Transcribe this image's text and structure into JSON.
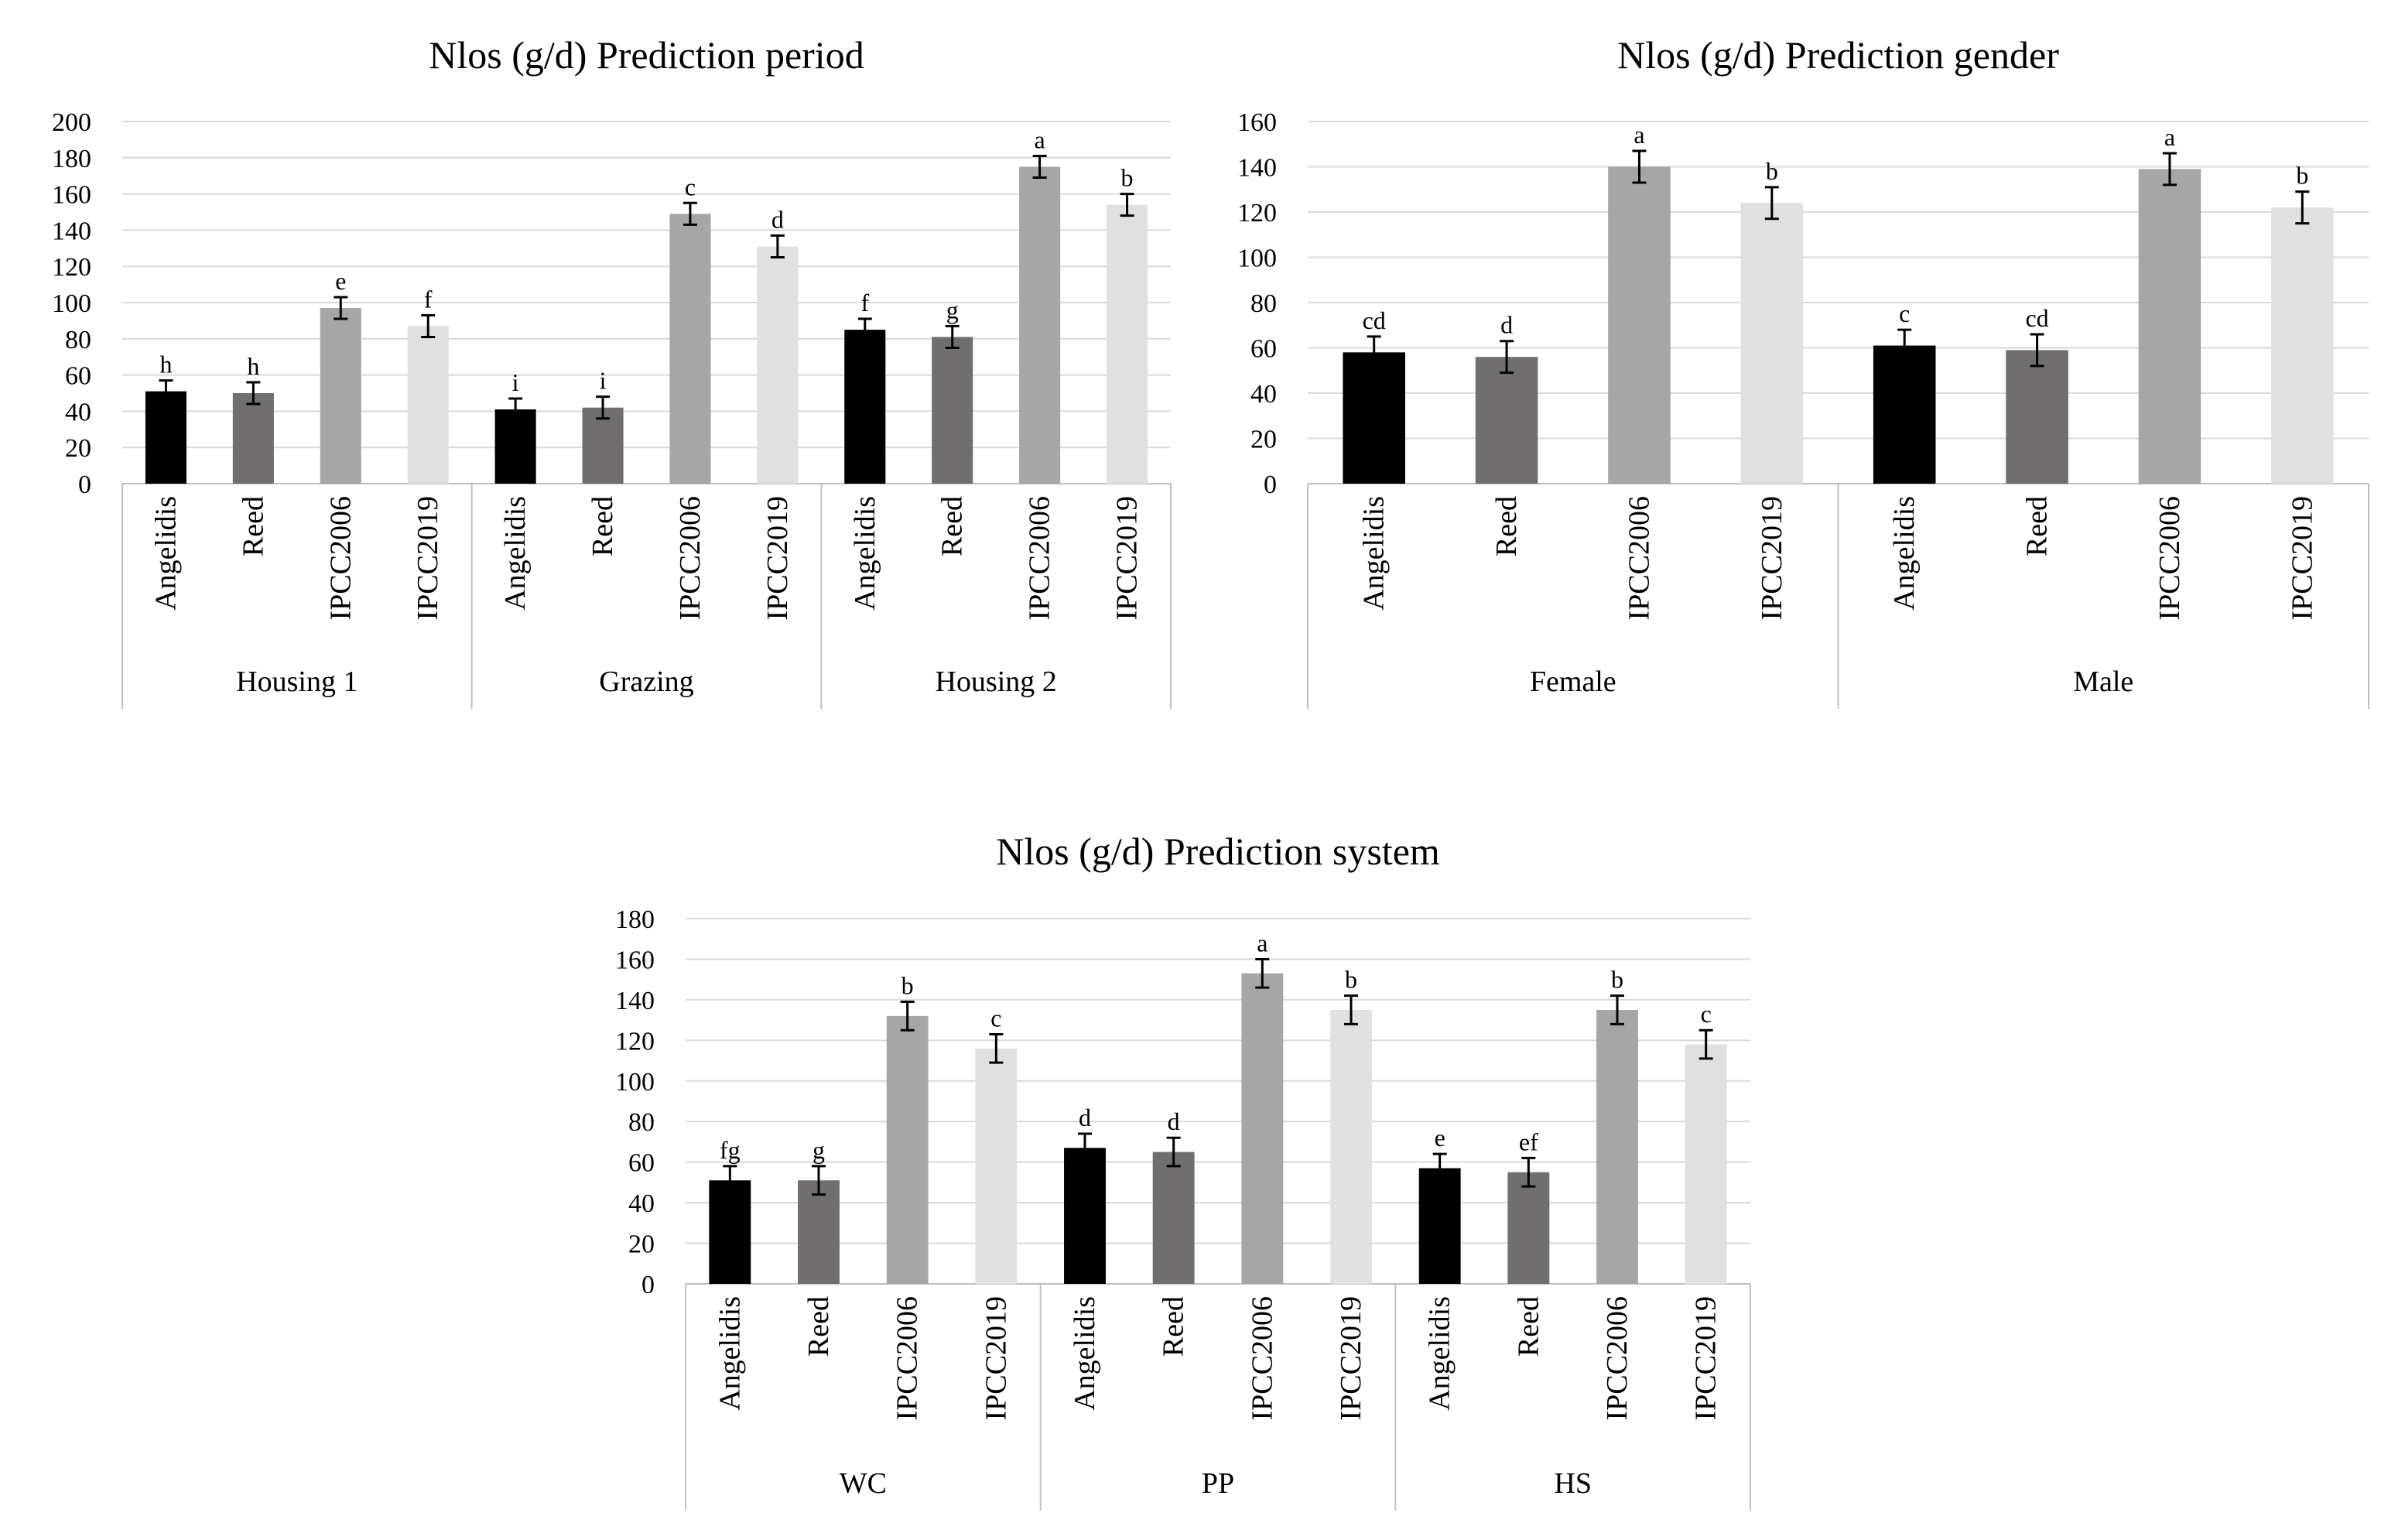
{
  "series_colors": {
    "Angelidis": "#000000",
    "Reed": "#706e6f",
    "IPCC2006": "#a6a6a6",
    "IPCC2019": "#e0e0e0"
  },
  "chart_data": [
    {
      "id": "period",
      "type": "bar",
      "title": "Nlos (g/d) Prediction period",
      "groups": [
        "Housing 1",
        "Grazing",
        "Housing 2"
      ],
      "categories": [
        "Angelidis",
        "Reed",
        "IPCC2006",
        "IPCC2019"
      ],
      "ylim": [
        0,
        200
      ],
      "yticks": [
        0,
        20,
        40,
        60,
        80,
        100,
        120,
        140,
        160,
        180,
        200
      ],
      "values": [
        [
          51,
          50,
          97,
          87
        ],
        [
          41,
          42,
          149,
          131
        ],
        [
          85,
          81,
          175,
          154
        ]
      ],
      "errors": [
        [
          6,
          6,
          6,
          6
        ],
        [
          6,
          6,
          6,
          6
        ],
        [
          6,
          6,
          6,
          6
        ]
      ],
      "letters": [
        [
          "h",
          "h",
          "e",
          "f"
        ],
        [
          "i",
          "i",
          "c",
          "d"
        ],
        [
          "f",
          "g",
          "a",
          "b"
        ]
      ]
    },
    {
      "id": "gender",
      "type": "bar",
      "title": "Nlos (g/d) Prediction gender",
      "groups": [
        "Female",
        "Male"
      ],
      "categories": [
        "Angelidis",
        "Reed",
        "IPCC2006",
        "IPCC2019"
      ],
      "ylim": [
        0,
        160
      ],
      "yticks": [
        0,
        20,
        40,
        60,
        80,
        100,
        120,
        140,
        160
      ],
      "values": [
        [
          58,
          56,
          140,
          124
        ],
        [
          61,
          59,
          139,
          122
        ]
      ],
      "errors": [
        [
          7,
          7,
          7,
          7
        ],
        [
          7,
          7,
          7,
          7
        ]
      ],
      "letters": [
        [
          "cd",
          "d",
          "a",
          "b"
        ],
        [
          "c",
          "cd",
          "a",
          "b"
        ]
      ]
    },
    {
      "id": "system",
      "type": "bar",
      "title": "Nlos (g/d) Prediction system",
      "groups": [
        "WC",
        "PP",
        "HS"
      ],
      "categories": [
        "Angelidis",
        "Reed",
        "IPCC2006",
        "IPCC2019"
      ],
      "ylim": [
        0,
        180
      ],
      "yticks": [
        0,
        20,
        40,
        60,
        80,
        100,
        120,
        140,
        160,
        180
      ],
      "values": [
        [
          51,
          51,
          132,
          116
        ],
        [
          67,
          65,
          153,
          135
        ],
        [
          57,
          55,
          135,
          118
        ]
      ],
      "errors": [
        [
          7,
          7,
          7,
          7
        ],
        [
          7,
          7,
          7,
          7
        ],
        [
          7,
          7,
          7,
          7
        ]
      ],
      "letters": [
        [
          "fg",
          "g",
          "b",
          "c"
        ],
        [
          "d",
          "d",
          "a",
          "b"
        ],
        [
          "e",
          "ef",
          "b",
          "c"
        ]
      ]
    }
  ]
}
